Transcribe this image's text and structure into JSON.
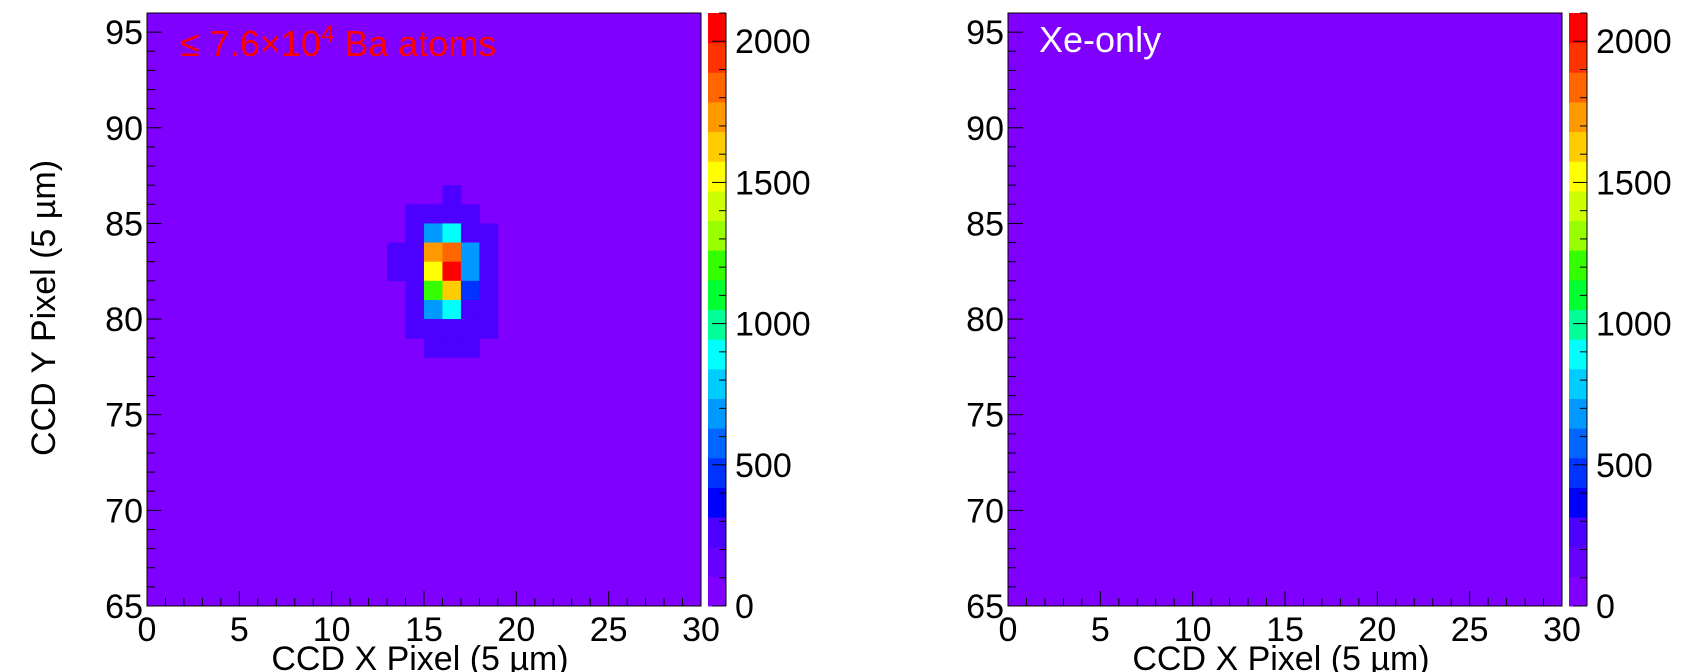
{
  "chart_data": [
    {
      "type": "heatmap",
      "title": "",
      "xlabel": "CCD X Pixel (5 µm)",
      "ylabel": "CCD Y Pixel (5 µm)",
      "xlim": [
        0,
        30
      ],
      "ylim": [
        65,
        96
      ],
      "zlim": [
        0,
        2100
      ],
      "x_ticks": [
        "0",
        "5",
        "10",
        "15",
        "20",
        "25",
        "30"
      ],
      "y_ticks": [
        "65",
        "70",
        "75",
        "80",
        "85",
        "90",
        "95"
      ],
      "z_ticks": [
        "0",
        "500",
        "1000",
        "1500",
        "2000"
      ],
      "annotation": {
        "prefix": "≤ 7.6×10",
        "exponent": "4",
        "suffix": " Ba atoms",
        "color": "#ff0000"
      },
      "background_value": 0,
      "cells": [
        {
          "x": 16,
          "y": 86,
          "z": 230
        },
        {
          "x": 14,
          "y": 85,
          "z": 240
        },
        {
          "x": 15,
          "y": 85,
          "z": 240
        },
        {
          "x": 16,
          "y": 85,
          "z": 240
        },
        {
          "x": 17,
          "y": 85,
          "z": 240
        },
        {
          "x": 14,
          "y": 84,
          "z": 250
        },
        {
          "x": 15,
          "y": 84,
          "z": 640
        },
        {
          "x": 16,
          "y": 84,
          "z": 850
        },
        {
          "x": 17,
          "y": 84,
          "z": 240
        },
        {
          "x": 18,
          "y": 84,
          "z": 230
        },
        {
          "x": 13,
          "y": 83,
          "z": 230
        },
        {
          "x": 14,
          "y": 83,
          "z": 250
        },
        {
          "x": 15,
          "y": 83,
          "z": 1680
        },
        {
          "x": 16,
          "y": 83,
          "z": 1870
        },
        {
          "x": 17,
          "y": 83,
          "z": 640
        },
        {
          "x": 18,
          "y": 83,
          "z": 230
        },
        {
          "x": 13,
          "y": 82,
          "z": 230
        },
        {
          "x": 14,
          "y": 82,
          "z": 250
        },
        {
          "x": 15,
          "y": 82,
          "z": 1500
        },
        {
          "x": 16,
          "y": 82,
          "z": 2100
        },
        {
          "x": 17,
          "y": 82,
          "z": 640
        },
        {
          "x": 18,
          "y": 82,
          "z": 230
        },
        {
          "x": 14,
          "y": 81,
          "z": 250
        },
        {
          "x": 15,
          "y": 81,
          "z": 1190
        },
        {
          "x": 16,
          "y": 81,
          "z": 1610
        },
        {
          "x": 17,
          "y": 81,
          "z": 430
        },
        {
          "x": 18,
          "y": 81,
          "z": 230
        },
        {
          "x": 14,
          "y": 80,
          "z": 240
        },
        {
          "x": 15,
          "y": 80,
          "z": 640
        },
        {
          "x": 16,
          "y": 80,
          "z": 850
        },
        {
          "x": 17,
          "y": 80,
          "z": 240
        },
        {
          "x": 18,
          "y": 80,
          "z": 230
        },
        {
          "x": 14,
          "y": 79,
          "z": 230
        },
        {
          "x": 15,
          "y": 79,
          "z": 270
        },
        {
          "x": 16,
          "y": 79,
          "z": 270
        },
        {
          "x": 17,
          "y": 79,
          "z": 240
        },
        {
          "x": 18,
          "y": 79,
          "z": 230
        },
        {
          "x": 15,
          "y": 78,
          "z": 230
        },
        {
          "x": 16,
          "y": 78,
          "z": 230
        },
        {
          "x": 17,
          "y": 78,
          "z": 230
        }
      ]
    },
    {
      "type": "heatmap",
      "title": "",
      "xlabel": "CCD X Pixel (5 µm)",
      "ylabel": "",
      "xlim": [
        0,
        30
      ],
      "ylim": [
        65,
        96
      ],
      "zlim": [
        0,
        2100
      ],
      "x_ticks": [
        "0",
        "5",
        "10",
        "15",
        "20",
        "25",
        "30"
      ],
      "y_ticks": [
        "65",
        "70",
        "75",
        "80",
        "85",
        "90",
        "95"
      ],
      "z_ticks": [
        "0",
        "500",
        "1000",
        "1500",
        "2000"
      ],
      "annotation": {
        "prefix": "Xe-only",
        "exponent": "",
        "suffix": "",
        "color": "#ffffff"
      },
      "background_value": 0,
      "cells": []
    }
  ],
  "colors": {
    "background_cell": "#6600ff",
    "axis": "#000000",
    "palette": [
      "#8000ff",
      "#6600ff",
      "#4c00ff",
      "#0000ff",
      "#0033ff",
      "#0066ff",
      "#0099ff",
      "#00ccff",
      "#00ffff",
      "#00ff99",
      "#00ff33",
      "#33ff00",
      "#99ff00",
      "#ccff00",
      "#ffff00",
      "#ffcc00",
      "#ff9900",
      "#ff6600",
      "#ff3300",
      "#ff0000"
    ]
  }
}
